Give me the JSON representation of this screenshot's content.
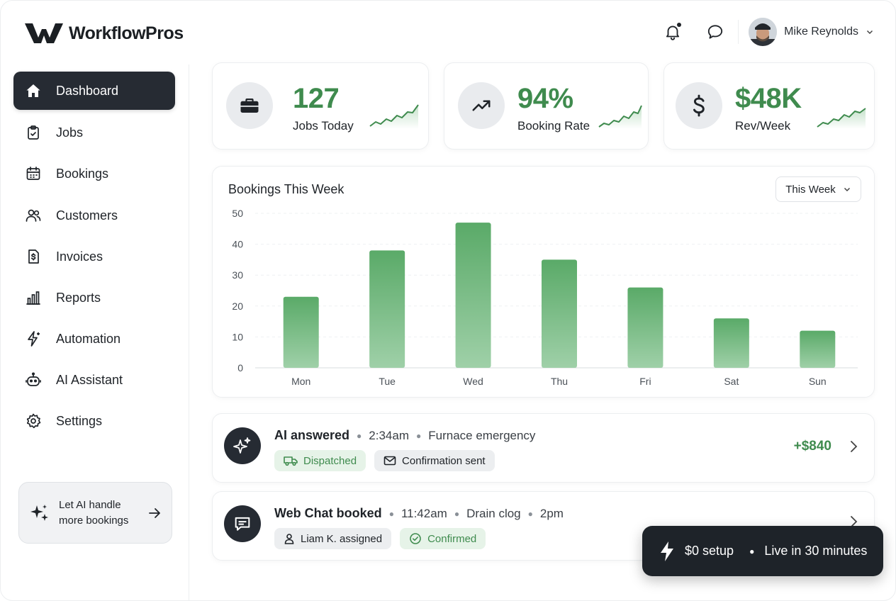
{
  "app": {
    "name": "WorkflowPros"
  },
  "header": {
    "user_name": "Mike Reynolds",
    "icons": [
      "bell-icon",
      "chat-icon",
      "chevron-down-icon"
    ]
  },
  "sidebar": {
    "items": [
      {
        "label": "Dashboard",
        "icon": "home-icon",
        "active": true
      },
      {
        "label": "Jobs",
        "icon": "clipboard-check-icon"
      },
      {
        "label": "Bookings",
        "icon": "calendar-icon"
      },
      {
        "label": "Customers",
        "icon": "users-icon"
      },
      {
        "label": "Invoices",
        "icon": "invoice-icon"
      },
      {
        "label": "Reports",
        "icon": "bar-chart-icon"
      },
      {
        "label": "Automation",
        "icon": "sparkle-bolt-icon"
      },
      {
        "label": "AI Assistant",
        "icon": "robot-icon"
      },
      {
        "label": "Settings",
        "icon": "gear-icon"
      }
    ],
    "ai_card": {
      "line1": "Let AI handle",
      "line2": "more bookings"
    }
  },
  "stats": [
    {
      "value": "127",
      "label": "Jobs Today",
      "icon": "briefcase-icon"
    },
    {
      "value": "94%",
      "label": "Booking Rate",
      "icon": "trend-up-icon"
    },
    {
      "value": "$48K",
      "label": "Rev/Week",
      "icon": "dollar-icon"
    }
  ],
  "colors": {
    "accent": "#3f8b4e",
    "bar_top": "#5aaa68",
    "bar_bottom": "#9fd0a8",
    "dark": "#262b33"
  },
  "chart": {
    "title": "Bookings This Week",
    "select_label": "This Week"
  },
  "chart_data": {
    "type": "bar",
    "title": "Bookings This Week",
    "categories": [
      "Mon",
      "Tue",
      "Wed",
      "Thu",
      "Fri",
      "Sat",
      "Sun"
    ],
    "values": [
      23,
      38,
      47,
      35,
      26,
      16,
      12
    ],
    "ylim": [
      0,
      50
    ],
    "yticks": [
      0,
      10,
      20,
      30,
      40,
      50
    ],
    "grid": true,
    "xlabel": "",
    "ylabel": ""
  },
  "activity": [
    {
      "title": "AI answered",
      "time": "2:34am",
      "detail": "Furnace emergency",
      "chips": [
        {
          "label": "Dispatched",
          "style": "green",
          "icon": "truck-icon"
        },
        {
          "label": "Confirmation sent",
          "style": "gray",
          "icon": "mail-icon"
        }
      ],
      "amount": "+$840",
      "icon": "sparkles-icon"
    },
    {
      "title": "Web Chat booked",
      "time": "11:42am",
      "detail": "Drain clog",
      "extra": "2pm",
      "chips": [
        {
          "label": "Liam K. assigned",
          "style": "gray",
          "icon": "user-icon"
        },
        {
          "label": "Confirmed",
          "style": "green",
          "icon": "check-circle-icon"
        }
      ],
      "icon": "chat-bubble-icon"
    }
  ],
  "toast": {
    "setup": "$0 setup",
    "live": "Live in 30 minutes"
  }
}
